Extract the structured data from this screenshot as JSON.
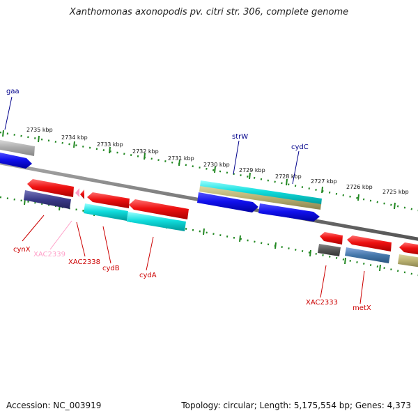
{
  "title": "Xanthomonas axonopodis pv. citri str. 306, complete genome",
  "footer": {
    "accession": "Accession: NC_003919",
    "topology": "Topology: circular; Length: 5,175,554 bp; Genes: 4,373"
  },
  "ticks": [
    {
      "label": "2735 kbp"
    },
    {
      "label": "2734 kbp"
    },
    {
      "label": "2733 kbp"
    },
    {
      "label": "2732 kbp"
    },
    {
      "label": "2731 kbp"
    },
    {
      "label": "2730 kbp"
    },
    {
      "label": "2729 kbp"
    },
    {
      "label": "2728 kbp"
    },
    {
      "label": "2727 kbp"
    },
    {
      "label": "2726 kbp"
    },
    {
      "label": "2725 kbp"
    }
  ],
  "gene_labels": [
    {
      "text": "gaa",
      "color": "#00008b"
    },
    {
      "text": "strW",
      "color": "#00008b"
    },
    {
      "text": "cydC",
      "color": "#00008b"
    },
    {
      "text": "cynX",
      "color": "#cc0000"
    },
    {
      "text": "XAC2339",
      "color": "#ff9fc8"
    },
    {
      "text": "XAC2338",
      "color": "#cc0000"
    },
    {
      "text": "cydB",
      "color": "#cc0000"
    },
    {
      "text": "cydA",
      "color": "#cc0000"
    },
    {
      "text": "XAC2333",
      "color": "#cc0000"
    },
    {
      "text": "metX",
      "color": "#cc0000"
    }
  ],
  "colors": {
    "red": "#ee1111",
    "blue": "#1111ee",
    "cyan": "#11dddd",
    "olive": "#b8b070",
    "navy": "#3a3a88",
    "gray": "#aaaaaa",
    "dark_gray": "#555555",
    "steel": "#4477aa",
    "backbone": "#777777",
    "tick": "#228822"
  }
}
